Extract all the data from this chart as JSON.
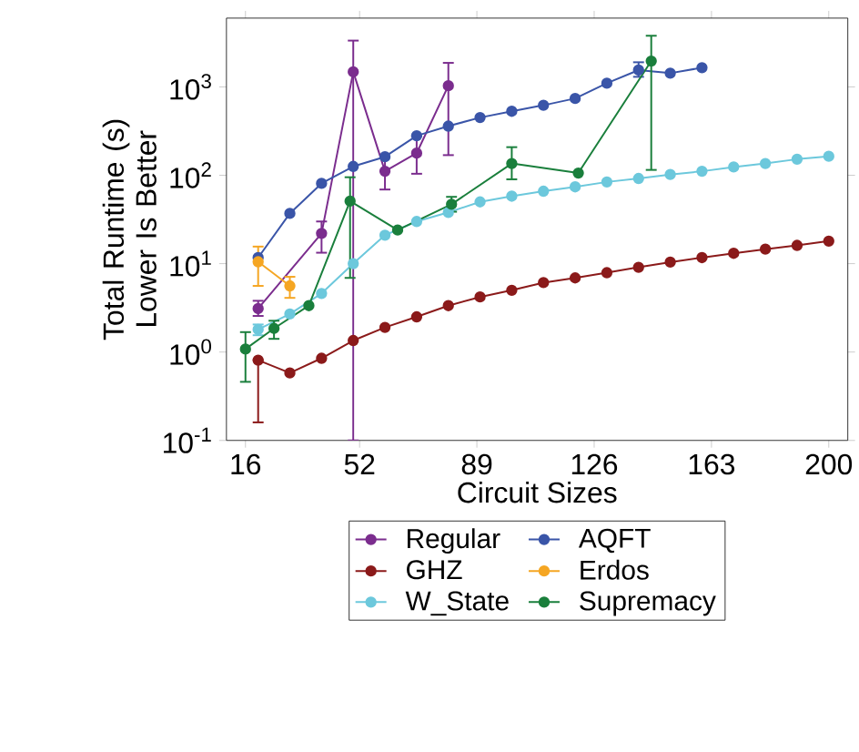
{
  "chart_data": {
    "type": "line",
    "xlabel": "Circuit Sizes",
    "ylabel": "Total Runtime (s) Lower Is Better",
    "log": "y",
    "marker": "circle",
    "legend": "bottom",
    "xlim": [
      10,
      206
    ],
    "xticks": [
      16,
      52,
      89,
      126,
      163,
      200
    ],
    "ylim": [
      0.1,
      6000
    ],
    "yticks": [
      {
        "value": 0.1,
        "label": "10$^{-1}$"
      },
      {
        "value": 1,
        "label": "10$^{0}$"
      },
      {
        "value": 10,
        "label": "10$^{1}$"
      },
      {
        "value": 100,
        "label": "10$^{2}$"
      },
      {
        "value": 1000,
        "label": "10$^{3}$"
      }
    ],
    "series": [
      {
        "name": "Regular",
        "color": "#7b2d8e",
        "x": [
          20,
          40,
          50,
          60,
          70,
          80
        ],
        "values": [
          3.1,
          22,
          1480,
          111,
          178,
          1030
        ],
        "errors": [
          [
            2.56,
            3.8
          ],
          [
            13.3,
            30
          ],
          [
            0.1,
            3340
          ],
          [
            69,
            159
          ],
          [
            104,
            276
          ],
          [
            169,
            1870
          ]
        ]
      },
      {
        "name": "GHZ",
        "color": "#8b1a1a",
        "x": [
          20,
          30,
          40,
          50,
          60,
          70,
          80,
          90,
          100,
          110,
          120,
          130,
          140,
          150,
          160,
          170,
          180,
          190,
          200
        ],
        "values": [
          0.81,
          0.58,
          0.85,
          1.35,
          1.9,
          2.5,
          3.35,
          4.2,
          5.0,
          6.1,
          6.9,
          7.9,
          9.1,
          10.4,
          11.7,
          13.1,
          14.6,
          16.1,
          18.0
        ],
        "errors": [
          [
            0.16,
            0.81
          ],
          null,
          null,
          null,
          null,
          null,
          null,
          null,
          null,
          null,
          null,
          null,
          null,
          null,
          null,
          null,
          null,
          null,
          null
        ]
      },
      {
        "name": "W_State",
        "color": "#6cc8dc",
        "x": [
          20,
          30,
          40,
          50,
          60,
          70,
          80,
          90,
          100,
          110,
          120,
          130,
          140,
          150,
          160,
          170,
          180,
          190,
          200
        ],
        "values": [
          1.8,
          2.7,
          4.6,
          10,
          21,
          30,
          38,
          50,
          58,
          66,
          74,
          84,
          92,
          102,
          111,
          124,
          136,
          152,
          164
        ],
        "errors": [
          [
            1.55,
            2.05
          ],
          null,
          null,
          null,
          null,
          null,
          null,
          null,
          null,
          null,
          null,
          null,
          null,
          null,
          null,
          null,
          null,
          null,
          null
        ]
      },
      {
        "name": "AQFT",
        "color": "#3a55a8",
        "x": [
          20,
          30,
          40,
          50,
          60,
          70,
          80,
          90,
          100,
          110,
          120,
          130,
          140,
          150,
          160
        ],
        "values": [
          11.7,
          37,
          81,
          126,
          162,
          280,
          360,
          450,
          530,
          620,
          740,
          1100,
          1550,
          1430,
          1650
        ],
        "errors": [
          null,
          null,
          null,
          null,
          null,
          null,
          null,
          null,
          null,
          null,
          null,
          null,
          [
            1300,
            1900
          ],
          null,
          null
        ]
      },
      {
        "name": "Erdos",
        "color": "#f5a623",
        "x": [
          20,
          30
        ],
        "values": [
          10.5,
          5.6
        ],
        "errors": [
          [
            5.6,
            15.6
          ],
          [
            4.1,
            7.1
          ]
        ]
      },
      {
        "name": "Supremacy",
        "color": "#1a7f3c",
        "x": [
          16,
          25,
          36,
          49,
          64,
          81,
          100,
          121,
          144
        ],
        "values": [
          1.08,
          1.85,
          3.35,
          51,
          24,
          47,
          136,
          106,
          1960
        ],
        "errors": [
          [
            0.46,
            1.68
          ],
          [
            1.41,
            2.26
          ],
          null,
          [
            6.9,
            95
          ],
          null,
          [
            38.7,
            57
          ],
          [
            90,
            208
          ],
          null,
          [
            115,
            3790
          ]
        ]
      }
    ]
  }
}
